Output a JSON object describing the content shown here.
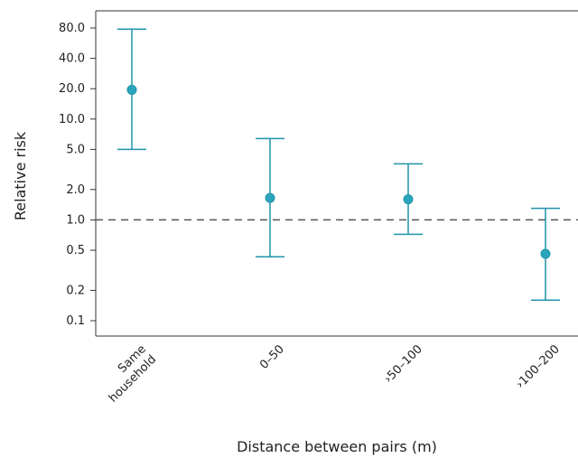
{
  "chart_data": {
    "type": "scatter",
    "title": "",
    "xlabel": "Distance between pairs (m)",
    "ylabel": "Relative risk",
    "y_scale": "log",
    "ylim": [
      0.08,
      120
    ],
    "y_ticks": [
      0.1,
      0.2,
      0.5,
      1.0,
      2.0,
      5.0,
      10.0,
      20.0,
      40.0,
      80.0
    ],
    "y_tick_labels": [
      "0.1",
      "0.2",
      "0.5",
      "1.0",
      "2.0",
      "5.0",
      "10.0",
      "20.0",
      "40.0",
      "80.0"
    ],
    "categories": [
      "Same household",
      "0–50",
      "›50–100",
      "›100–200"
    ],
    "values": [
      19.5,
      1.65,
      1.6,
      0.46
    ],
    "error_low": [
      5.0,
      0.43,
      0.72,
      0.16
    ],
    "error_high": [
      78.0,
      6.4,
      3.6,
      1.3
    ],
    "reference_line": 1.0,
    "grid": false,
    "colors": {
      "series": "#1f93aa",
      "marker": "#2aa5bd",
      "axis": "#333333",
      "reference": "#555555"
    }
  }
}
